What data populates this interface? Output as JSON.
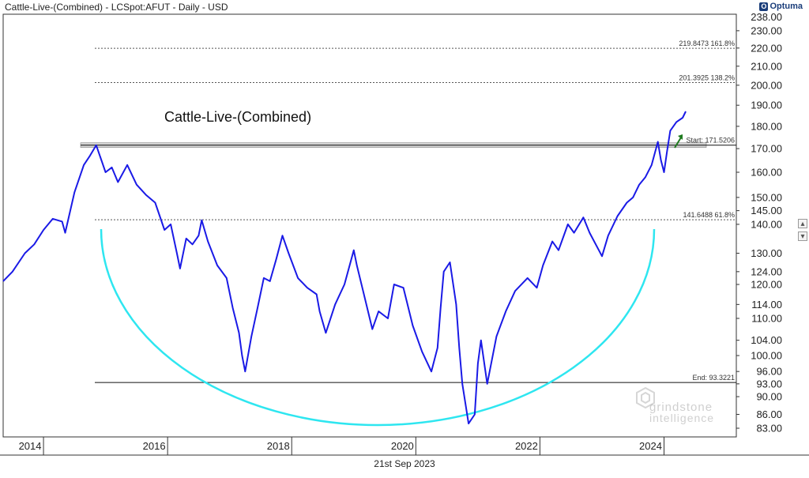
{
  "header": {
    "title": "Cattle-Live-(Combined) - LCSpot:AFUT - Daily - USD",
    "brand": "Optuma",
    "brand_icon": "optuma-logo-icon"
  },
  "footer": {
    "date": "21st Sep 2023"
  },
  "side_buttons": [
    {
      "icon": "scroll-up-icon",
      "glyph": "▴"
    },
    {
      "icon": "scroll-down-icon",
      "glyph": "▾"
    }
  ],
  "watermark": {
    "line1": "grindstone",
    "line2": "intelligence"
  },
  "colors": {
    "price": "#1a1ae6",
    "arc": "#2ee6f0",
    "arrow": "#1f7a1f",
    "fib_line": "#555555",
    "grid_bg": "#ffffff",
    "band_fill": "#d4d4d4",
    "axis_text": "#222222"
  },
  "chart_data": {
    "type": "line",
    "title": "Cattle-Live-(Combined)",
    "y_scale": "log",
    "ylim": [
      83,
      238
    ],
    "xlim": [
      2013.35,
      2024.35
    ],
    "y_ticks": [
      230,
      220,
      210,
      200,
      190,
      180,
      170,
      160,
      150,
      145,
      140,
      130,
      124,
      120,
      114,
      110,
      104,
      100,
      96,
      93,
      90,
      86,
      83
    ],
    "y_tick_labels": [
      "230.00",
      "220.00",
      "210.00",
      "200.00",
      "190.00",
      "180.00",
      "170.00",
      "160.00",
      "150.00",
      "145.00",
      "140.00",
      "130.00",
      "124.00",
      "120.00",
      "114.00",
      "110.00",
      "104.00",
      "100.00",
      "96.00",
      "93.00",
      "90.00",
      "86.00",
      "83.00"
    ],
    "y_top_label": "238.00",
    "x_ticks": [
      2014,
      2016,
      2018,
      2020,
      2022,
      2024
    ],
    "x_tick_labels": [
      "2014",
      "2016",
      "2018",
      "2020",
      "2022",
      "2024"
    ],
    "grid": false,
    "series": [
      {
        "name": "Cattle-Live-(Combined)",
        "points": [
          [
            2013.35,
            121
          ],
          [
            2013.5,
            124
          ],
          [
            2013.7,
            130
          ],
          [
            2013.85,
            133
          ],
          [
            2014.0,
            138
          ],
          [
            2014.15,
            142
          ],
          [
            2014.3,
            141
          ],
          [
            2014.35,
            137
          ],
          [
            2014.5,
            152
          ],
          [
            2014.65,
            163
          ],
          [
            2014.75,
            167
          ],
          [
            2014.85,
            171.5
          ],
          [
            2015.0,
            160
          ],
          [
            2015.1,
            162
          ],
          [
            2015.2,
            156
          ],
          [
            2015.35,
            163
          ],
          [
            2015.5,
            155
          ],
          [
            2015.65,
            151
          ],
          [
            2015.8,
            148
          ],
          [
            2015.95,
            138
          ],
          [
            2016.05,
            140
          ],
          [
            2016.15,
            130
          ],
          [
            2016.2,
            125
          ],
          [
            2016.3,
            135
          ],
          [
            2016.4,
            133
          ],
          [
            2016.5,
            136
          ],
          [
            2016.55,
            141.5
          ],
          [
            2016.65,
            134
          ],
          [
            2016.8,
            126
          ],
          [
            2016.95,
            122
          ],
          [
            2017.05,
            113
          ],
          [
            2017.15,
            106
          ],
          [
            2017.2,
            100
          ],
          [
            2017.25,
            96
          ],
          [
            2017.35,
            105
          ],
          [
            2017.45,
            113
          ],
          [
            2017.55,
            122
          ],
          [
            2017.65,
            121
          ],
          [
            2017.75,
            128
          ],
          [
            2017.85,
            136
          ],
          [
            2017.95,
            130
          ],
          [
            2018.1,
            122
          ],
          [
            2018.25,
            119
          ],
          [
            2018.4,
            117
          ],
          [
            2018.45,
            112
          ],
          [
            2018.55,
            106
          ],
          [
            2018.7,
            114
          ],
          [
            2018.85,
            120
          ],
          [
            2019.0,
            131
          ],
          [
            2019.05,
            126
          ],
          [
            2019.15,
            118
          ],
          [
            2019.3,
            107
          ],
          [
            2019.4,
            112
          ],
          [
            2019.55,
            110
          ],
          [
            2019.65,
            120
          ],
          [
            2019.8,
            119
          ],
          [
            2019.95,
            108
          ],
          [
            2020.1,
            101
          ],
          [
            2020.25,
            96
          ],
          [
            2020.35,
            102
          ],
          [
            2020.4,
            113
          ],
          [
            2020.45,
            124
          ],
          [
            2020.55,
            127
          ],
          [
            2020.65,
            114
          ],
          [
            2020.7,
            102
          ],
          [
            2020.75,
            93
          ],
          [
            2020.85,
            84
          ],
          [
            2020.95,
            86
          ],
          [
            2021.0,
            98
          ],
          [
            2021.05,
            104
          ],
          [
            2021.15,
            93
          ],
          [
            2021.3,
            105
          ],
          [
            2021.45,
            112
          ],
          [
            2021.6,
            118
          ],
          [
            2021.8,
            122
          ],
          [
            2021.95,
            119
          ],
          [
            2022.05,
            126
          ],
          [
            2022.2,
            134
          ],
          [
            2022.3,
            131
          ],
          [
            2022.45,
            140
          ],
          [
            2022.55,
            137
          ],
          [
            2022.7,
            142.5
          ],
          [
            2022.8,
            137
          ],
          [
            2022.95,
            131
          ],
          [
            2023.0,
            129
          ],
          [
            2023.1,
            136
          ],
          [
            2023.25,
            143
          ],
          [
            2023.4,
            148
          ],
          [
            2023.5,
            150
          ],
          [
            2023.6,
            155
          ],
          [
            2023.7,
            158
          ],
          [
            2023.8,
            163
          ],
          [
            2023.9,
            173
          ],
          [
            2023.95,
            165
          ],
          [
            2024.0,
            160
          ],
          [
            2024.05,
            169
          ],
          [
            2024.1,
            178
          ],
          [
            2024.2,
            182
          ],
          [
            2024.3,
            184
          ],
          [
            2024.35,
            187
          ]
        ]
      }
    ],
    "levels": [
      {
        "value": 219.8473,
        "label": "219.8473",
        "pct": "161.8%",
        "style": "dotted"
      },
      {
        "value": 201.3925,
        "label": "201.3925",
        "pct": "138.2%",
        "style": "dotted"
      },
      {
        "value": 171.5206,
        "label": "171.5206",
        "pct": "Start:",
        "style": "solid"
      },
      {
        "value": 141.6488,
        "label": "141.6488",
        "pct": "61.8%",
        "style": "dotted"
      },
      {
        "value": 93.3221,
        "label": "93.3221",
        "pct": "End:",
        "style": "solid"
      }
    ]
  }
}
